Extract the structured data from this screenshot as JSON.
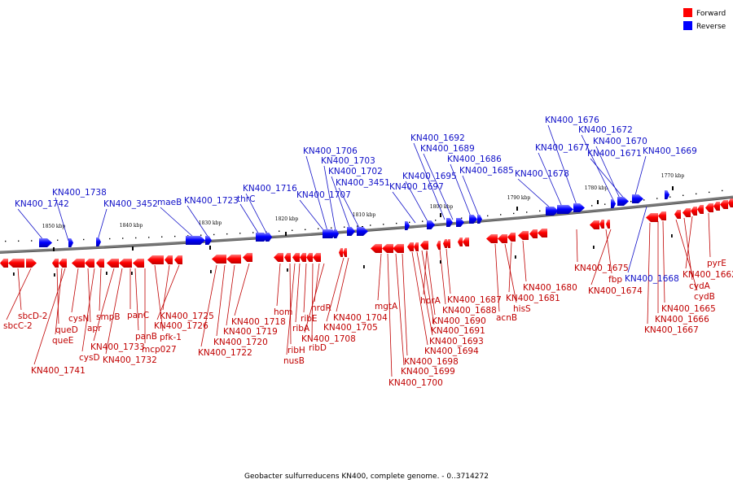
{
  "colors": {
    "forward": "#ff0000",
    "reverse": "#0000ff",
    "backbone": "#808080"
  },
  "legend": {
    "forward": "Forward",
    "reverse": "Reverse"
  },
  "caption": "Geobacter sulfurreducens KN400, complete genome. - 0..3714272",
  "scale_ticks": [
    "1850 kbp",
    "1840 kbp",
    "1830 kbp",
    "1820 kbp",
    "1810 kbp",
    "1800 kbp",
    "1790 kbp",
    "1780 kbp",
    "1770 kbp"
  ],
  "forward_genes": [
    "sbcD-2",
    "sbcC-2",
    "queD",
    "queE",
    "KN400_1741",
    "cysN",
    "apr",
    "cysD",
    "smpB",
    "KN400_1733",
    "KN400_1732",
    "panC",
    "panB",
    "mcp027",
    "pfk-1",
    "KN400_1725",
    "KN400_1726",
    "KN400_1722",
    "KN400_1720",
    "KN400_1719",
    "KN400_1718",
    "hom",
    "ribH",
    "nusB",
    "ribA",
    "ribE",
    "ribD",
    "nrdR",
    "KN400_1708",
    "KN400_1705",
    "KN400_1704",
    "mgtA",
    "KN400_1700",
    "KN400_1699",
    "KN400_1698",
    "KN400_1694",
    "KN400_1693",
    "KN400_1691",
    "KN400_1690",
    "hprA",
    "KN400_1688",
    "KN400_1687",
    "acnB",
    "hisS",
    "KN400_1681",
    "KN400_1680",
    "KN400_1675",
    "fbp",
    "KN400_1674",
    "KN400_1667",
    "KN400_1666",
    "KN400_1665",
    "cydB",
    "cydA",
    "KN400_1662",
    "pyrE"
  ],
  "reverse_genes": [
    "KN400_1742",
    "KN400_1738",
    "KN400_3452",
    "maeB",
    "KN400_1723",
    "thrC",
    "KN400_1716",
    "KN400_1707",
    "KN400_1706",
    "KN400_1703",
    "KN400_1702",
    "KN400_3451",
    "KN400_1697",
    "KN400_1695",
    "KN400_1692",
    "KN400_1689",
    "KN400_1686",
    "KN400_1685",
    "KN400_1678",
    "KN400_1677",
    "KN400_1676",
    "KN400_1672",
    "KN400_1670",
    "KN400_1671",
    "KN400_1669",
    "KN400_1668"
  ]
}
